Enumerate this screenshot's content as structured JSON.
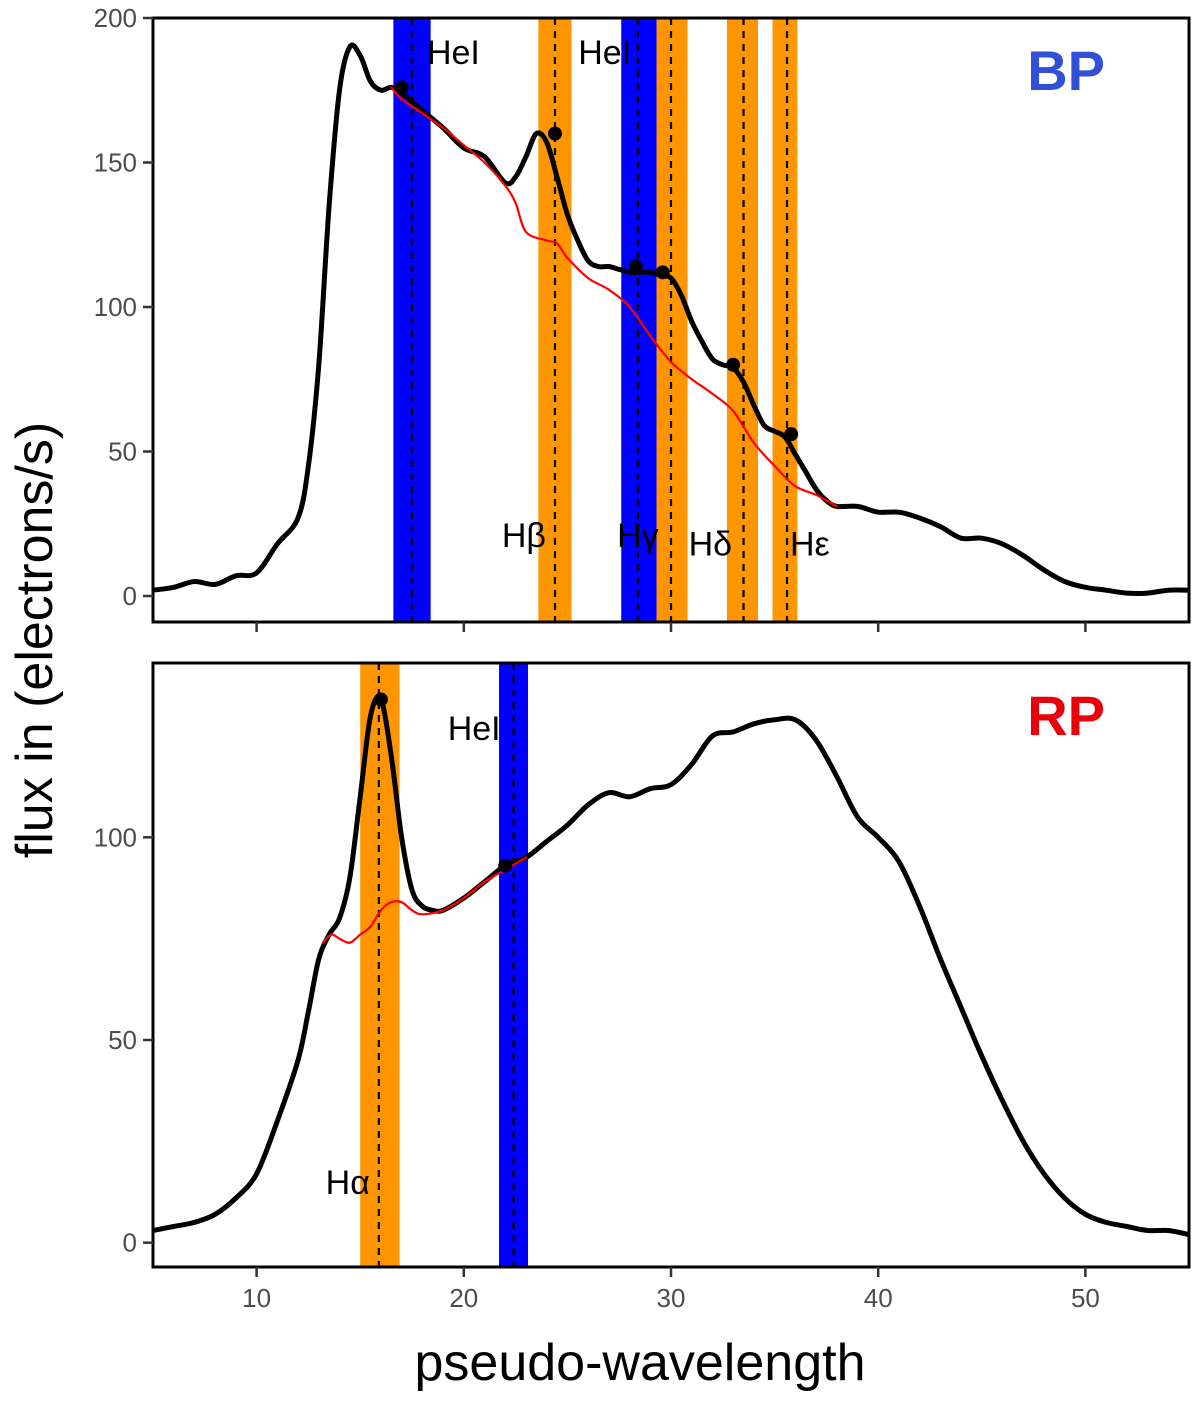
{
  "chart_data": [
    {
      "type": "line",
      "panel": "BP",
      "tag": "BP",
      "tag_color": "#3050d8",
      "xlim": [
        5,
        55
      ],
      "ylim": [
        -9,
        200
      ],
      "yticks": [
        0,
        50,
        100,
        150,
        200
      ],
      "series": [
        {
          "name": "spectrum",
          "color": "#000000",
          "x": [
            5,
            6,
            7,
            8,
            9,
            10,
            11,
            12,
            12.5,
            13,
            13.5,
            14,
            14.5,
            15,
            15.5,
            16,
            16.5,
            17,
            17.5,
            18,
            19,
            20,
            21,
            22,
            22.5,
            23,
            23.5,
            24,
            24.5,
            25,
            25.5,
            26,
            26.5,
            27,
            27.5,
            28,
            28.5,
            29,
            29.5,
            30,
            30.5,
            31,
            31.5,
            32,
            32.5,
            33,
            33.5,
            34,
            34.5,
            35,
            35.5,
            36,
            36.5,
            37,
            37.5,
            38,
            39,
            40,
            41,
            42,
            43,
            44,
            45,
            46,
            47,
            48,
            49,
            50,
            51,
            52,
            53,
            54,
            55
          ],
          "y": [
            2,
            3,
            5,
            4,
            7,
            8,
            18,
            27,
            45,
            80,
            135,
            175,
            190,
            187,
            178,
            175,
            176,
            174,
            171,
            168,
            162,
            155,
            152,
            143,
            145,
            152,
            160,
            157,
            145,
            132,
            123,
            116,
            114,
            114,
            113,
            112,
            112,
            112,
            111,
            110,
            104,
            95,
            88,
            82,
            80,
            79,
            74,
            66,
            59,
            57,
            55,
            49,
            43,
            37,
            33,
            31,
            31,
            29,
            29,
            27,
            24,
            20,
            20,
            18,
            14,
            9,
            5,
            3,
            2,
            1,
            1,
            2,
            2
          ]
        },
        {
          "name": "continuum",
          "color": "#ff0000",
          "x": [
            16.5,
            17,
            18,
            19,
            20,
            21,
            22,
            22.5,
            23,
            24,
            24.5,
            25,
            26,
            27,
            28,
            29,
            30,
            31,
            32,
            33,
            34,
            35,
            36,
            37,
            38
          ],
          "y": [
            176,
            172,
            167,
            162,
            156,
            150,
            142,
            136,
            126,
            123,
            122,
            117,
            110,
            106,
            100,
            90,
            81,
            75,
            70,
            64,
            53,
            45,
            38,
            35,
            31
          ]
        }
      ],
      "markers": [
        {
          "x": 17.0,
          "y": 176
        },
        {
          "x": 24.4,
          "y": 160
        },
        {
          "x": 28.3,
          "y": 114
        },
        {
          "x": 29.6,
          "y": 112
        },
        {
          "x": 33.0,
          "y": 80
        },
        {
          "x": 35.8,
          "y": 56
        }
      ],
      "bands": [
        {
          "type": "emission",
          "color": "#ff9500",
          "from": 23.6,
          "to": 25.2
        },
        {
          "type": "emission",
          "color": "#ff9500",
          "from": 29.2,
          "to": 30.8
        },
        {
          "type": "emission",
          "color": "#ff9500",
          "from": 32.7,
          "to": 34.2
        },
        {
          "type": "emission",
          "color": "#ff9500",
          "from": 34.9,
          "to": 36.1
        },
        {
          "type": "HeI",
          "color": "#0000ff",
          "from": 16.6,
          "to": 18.4
        },
        {
          "type": "HeI",
          "color": "#0000ff",
          "from": 27.6,
          "to": 29.3
        }
      ],
      "line_markers": [
        17.5,
        24.4,
        28.4,
        30.0,
        33.5,
        35.6
      ],
      "line_labels": [
        {
          "text": "HeI",
          "x": 19.5,
          "y": 184
        },
        {
          "text": "HeI",
          "x": 26.8,
          "y": 184
        },
        {
          "text": "Hβ",
          "x": 22.9,
          "y": 17
        },
        {
          "text": "Hγ",
          "x": 28.4,
          "y": 17
        },
        {
          "text": "Hδ",
          "x": 31.9,
          "y": 14
        },
        {
          "text": "Hε",
          "x": 36.7,
          "y": 14
        }
      ]
    },
    {
      "type": "line",
      "panel": "RP",
      "tag": "RP",
      "tag_color": "#e8000b",
      "xlim": [
        5,
        55
      ],
      "ylim": [
        -6,
        143
      ],
      "yticks": [
        0,
        50,
        100
      ],
      "series": [
        {
          "name": "spectrum",
          "color": "#000000",
          "x": [
            5,
            6,
            7,
            8,
            9,
            10,
            11,
            12,
            12.5,
            13,
            13.5,
            14,
            14.5,
            15,
            15.5,
            16,
            16.5,
            17,
            17.5,
            18,
            18.5,
            19,
            20,
            21,
            22,
            23,
            24,
            25,
            26,
            27,
            28,
            29,
            30,
            31,
            32,
            33,
            34,
            35,
            36,
            37,
            38,
            39,
            40,
            41,
            42,
            43,
            44,
            45,
            46,
            47,
            48,
            49,
            50,
            51,
            52,
            53,
            54,
            55
          ],
          "y": [
            3,
            4,
            5,
            7,
            11,
            17,
            30,
            45,
            57,
            70,
            76,
            80,
            90,
            110,
            130,
            134,
            120,
            100,
            87,
            83,
            82,
            82,
            85,
            89,
            93,
            95,
            99,
            103,
            108,
            111,
            110,
            112,
            113,
            118,
            125,
            126,
            128,
            129,
            129,
            124,
            115,
            105,
            100,
            94,
            83,
            70,
            58,
            46,
            35,
            25,
            17,
            11,
            7,
            5,
            4,
            3,
            3,
            2
          ]
        },
        {
          "name": "continuum",
          "color": "#ff0000",
          "x": [
            13.2,
            13.6,
            14,
            14.5,
            15,
            15.5,
            16,
            16.5,
            17,
            17.5,
            18,
            19,
            20,
            21,
            22,
            23
          ],
          "y": [
            74,
            76,
            75,
            74,
            76,
            78,
            82,
            84,
            84,
            82,
            81,
            82,
            85,
            89,
            92,
            95
          ]
        }
      ],
      "markers": [
        {
          "x": 16.0,
          "y": 134
        },
        {
          "x": 22.0,
          "y": 93
        }
      ],
      "bands": [
        {
          "type": "emission",
          "color": "#ff9500",
          "from": 15.0,
          "to": 16.9
        },
        {
          "type": "HeI",
          "color": "#0000ff",
          "from": 21.7,
          "to": 23.1
        }
      ],
      "line_markers": [
        15.9,
        22.4
      ],
      "line_labels": [
        {
          "text": "HeI",
          "x": 20.5,
          "y": 124
        },
        {
          "text": "Hα",
          "x": 14.4,
          "y": 12
        }
      ]
    }
  ],
  "xticks": [
    10,
    20,
    30,
    40,
    50
  ],
  "xlabel": "pseudo-wavelength",
  "ylabel": "flux in (electrons/s)"
}
